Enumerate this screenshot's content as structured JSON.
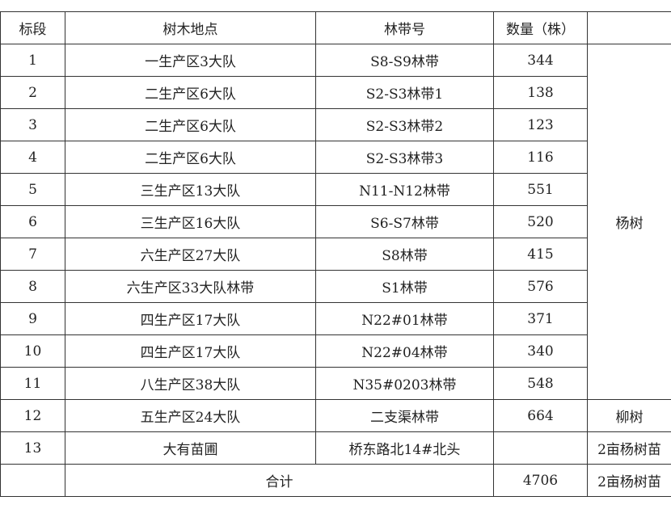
{
  "headers": [
    "标段",
    "树木地点",
    "林带号",
    "数量（株）",
    ""
  ],
  "rows": [
    {
      "no": "1",
      "location": "一生产区3大队",
      "belt": "S8-S9林带",
      "count": "344"
    },
    {
      "no": "2",
      "location": "二生产区6大队",
      "belt": "S2-S3林带1",
      "count": "138"
    },
    {
      "no": "3",
      "location": "二生产区6大队",
      "belt": "S2-S3林带2",
      "count": "123"
    },
    {
      "no": "4",
      "location": "二生产区6大队",
      "belt": "S2-S3林带3",
      "count": "116"
    },
    {
      "no": "5",
      "location": "三生产区13大队",
      "belt": "N11-N12林带",
      "count": "551"
    },
    {
      "no": "6",
      "location": "三生产区16大队",
      "belt": "S6-S7林带",
      "count": "520"
    },
    {
      "no": "7",
      "location": "六生产区27大队",
      "belt": "S8林带",
      "count": "415"
    },
    {
      "no": "8",
      "location": "六生产区33大队林带",
      "belt": "S1林带",
      "count": "576"
    },
    {
      "no": "9",
      "location": "四生产区17大队",
      "belt": "N22#01林带",
      "count": "371"
    },
    {
      "no": "10",
      "location": "四生产区17大队",
      "belt": "N22#04林带",
      "count": "340"
    },
    {
      "no": "11",
      "location": "八生产区38大队",
      "belt": "N35#0203林带",
      "count": "548"
    },
    {
      "no": "12",
      "location": "五生产区24大队",
      "belt": "二支渠林带",
      "count": "664"
    },
    {
      "no": "13",
      "location": "大有苗圃",
      "belt": "桥东路北14#北头",
      "count": ""
    }
  ],
  "species": {
    "poplar": "杨树",
    "willow": "柳树",
    "nursery": "2亩杨树苗"
  },
  "total": {
    "label": "合计",
    "count": "4706",
    "note": "2亩杨树苗"
  }
}
